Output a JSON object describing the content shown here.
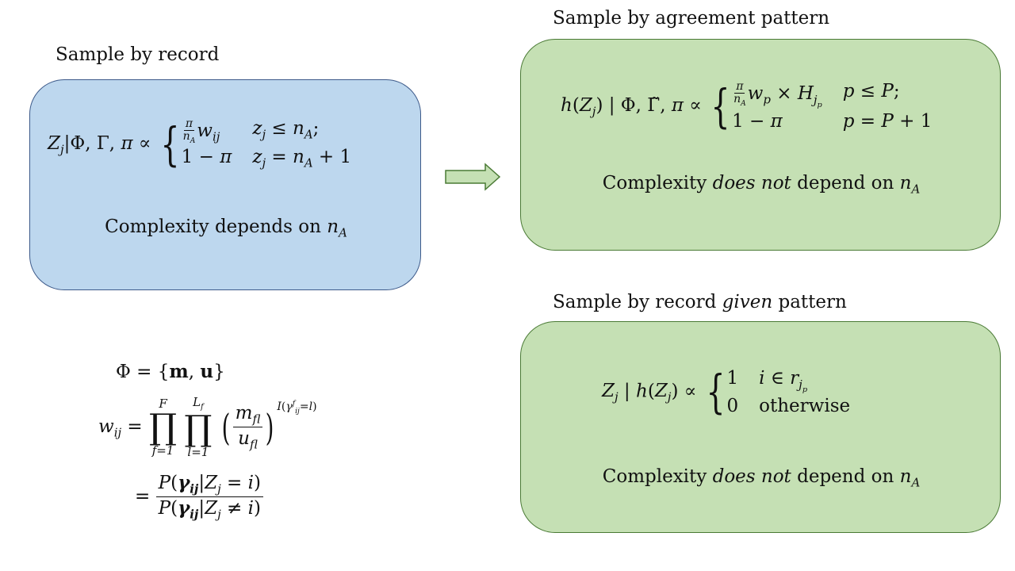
{
  "left": {
    "title": "Sample by record",
    "complexity_prefix": "Complexity depends on ",
    "complexity_var": "n",
    "complexity_sub": "A"
  },
  "right_top": {
    "title": "Sample by agreement pattern",
    "complexity_prefix": "Complexity ",
    "complexity_emph": "does not",
    "complexity_suffix": " depend on ",
    "complexity_var": "n",
    "complexity_sub": "A"
  },
  "right_bottom": {
    "title_prefix": "Sample by record ",
    "title_emph": "given",
    "title_suffix": " pattern",
    "complexity_prefix": "Complexity ",
    "complexity_emph": "does not",
    "complexity_suffix": " depend on ",
    "complexity_var": "n",
    "complexity_sub": "A",
    "case1_value": "1",
    "case2_value": "0",
    "case2_condition": "otherwise"
  },
  "colors": {
    "blue_fill": "#bdd7ee",
    "blue_border": "#3d5a8a",
    "green_fill": "#c5e0b4",
    "green_border": "#4a7a35",
    "arrow_fill": "#c5e0b4",
    "arrow_border": "#4a7a35"
  }
}
